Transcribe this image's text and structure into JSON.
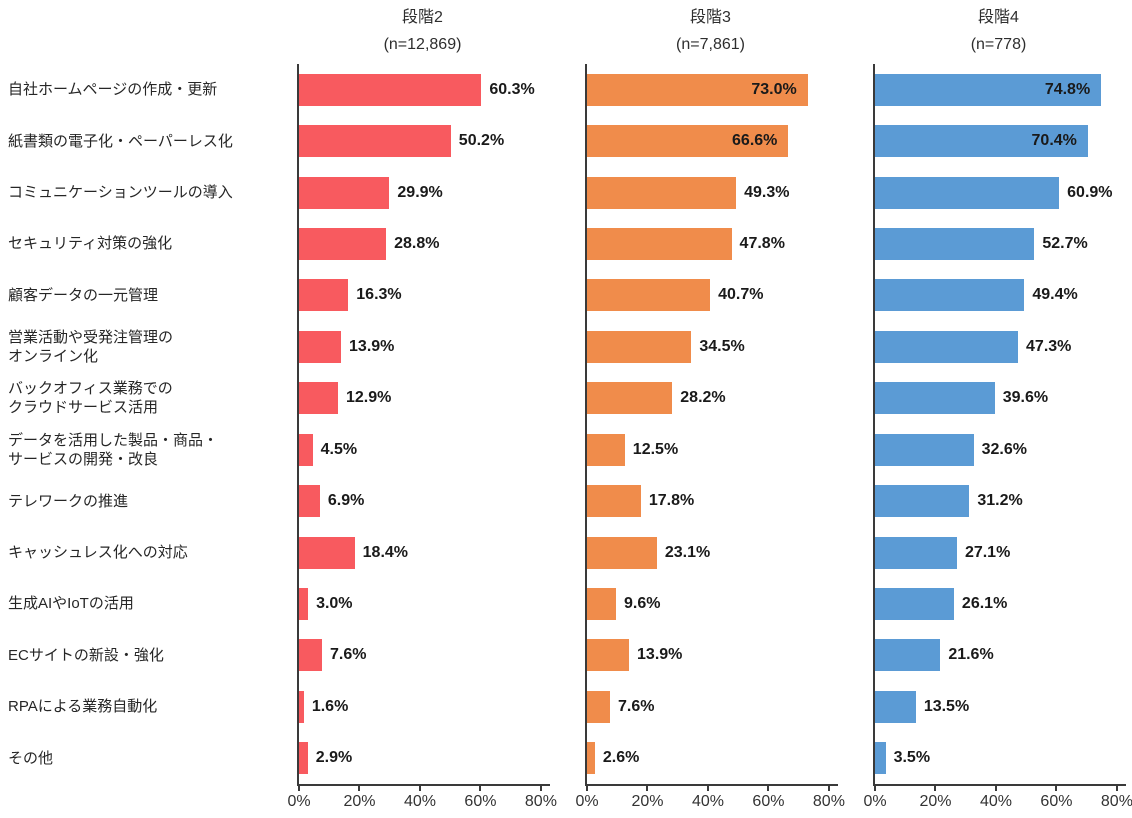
{
  "chart_data": {
    "type": "bar",
    "orientation": "horizontal",
    "title": "",
    "categories": [
      "自社ホームページの作成・更新",
      "紙書類の電子化・ペーパーレス化",
      "コミュニケーションツールの導入",
      "セキュリティ対策の強化",
      "顧客データの一元管理",
      "営業活動や受発注管理の\nオンライン化",
      "バックオフィス業務での\nクラウドサービス活用",
      "データを活用した製品・商品・\nサービスの開発・改良",
      "テレワークの推進",
      "キャッシュレス化への対応",
      "生成AIやIoTの活用",
      "ECサイトの新設・強化",
      "RPAによる業務自動化",
      "その他"
    ],
    "series": [
      {
        "name": "段階2",
        "n_label": "(n=12,869)",
        "color": "#F85A5F",
        "values": [
          60.3,
          50.2,
          29.9,
          28.8,
          16.3,
          13.9,
          12.9,
          4.5,
          6.9,
          18.4,
          3.0,
          7.6,
          1.6,
          2.9
        ],
        "value_labels": [
          "60.3%",
          "50.2%",
          "29.9%",
          "28.8%",
          "16.3%",
          "13.9%",
          "12.9%",
          "4.5%",
          "6.9%",
          "18.4%",
          "3.0%",
          "7.6%",
          "1.6%",
          "2.9%"
        ]
      },
      {
        "name": "段階3",
        "n_label": "(n=7,861)",
        "color": "#F08C4B",
        "values": [
          73.0,
          66.6,
          49.3,
          47.8,
          40.7,
          34.5,
          28.2,
          12.5,
          17.8,
          23.1,
          9.6,
          13.9,
          7.6,
          2.6
        ],
        "value_labels": [
          "73.0%",
          "66.6%",
          "49.3%",
          "47.8%",
          "40.7%",
          "34.5%",
          "28.2%",
          "12.5%",
          "17.8%",
          "23.1%",
          "9.6%",
          "13.9%",
          "7.6%",
          "2.6%"
        ]
      },
      {
        "name": "段階4",
        "n_label": "(n=778)",
        "color": "#5B9BD5",
        "values": [
          74.8,
          70.4,
          60.9,
          52.7,
          49.4,
          47.3,
          39.6,
          32.6,
          31.2,
          27.1,
          26.1,
          21.6,
          13.5,
          3.5
        ],
        "value_labels": [
          "74.8%",
          "70.4%",
          "60.9%",
          "52.7%",
          "49.4%",
          "47.3%",
          "39.6%",
          "32.6%",
          "31.2%",
          "27.1%",
          "26.1%",
          "21.6%",
          "13.5%",
          "3.5%"
        ]
      }
    ],
    "x_tick_labels": [
      "0%",
      "20%",
      "40%",
      "60%",
      "80%"
    ],
    "x_tick_values": [
      0,
      20,
      40,
      60,
      80
    ],
    "xlim": [
      0,
      83
    ],
    "grid": false,
    "legend_position": "none",
    "colors": {
      "axis": "#3a3a3a",
      "category_text": "#262626",
      "value_text": "#1a1a1a",
      "tick_text": "#333333"
    }
  }
}
